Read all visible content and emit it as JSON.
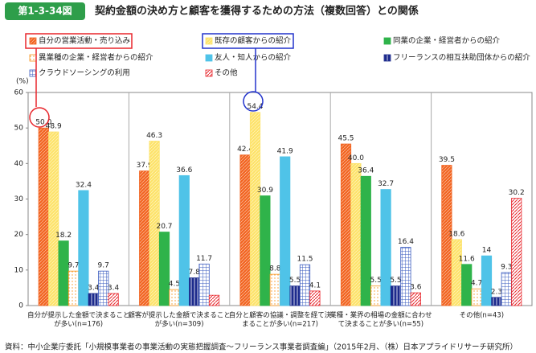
{
  "header": {
    "figure_number": "第1-3-34図"
  },
  "chart_data": {
    "type": "bar",
    "title": "契約金額の決め方と顧客を獲得するための方法（複数回答）との関係",
    "y_axis_label": "(%)",
    "categories": [
      [
        "自分が提示した金額で決まること",
        "が多い(n=176)"
      ],
      [
        "顧客が提示した金額で決まること",
        "が多い(n=309)"
      ],
      [
        "自分と顧客の協議・調整を経て決",
        "まることが多い(n=217)"
      ],
      [
        "業種・業界の相場の金額に合わせ",
        "て決まることが多い(n=55)"
      ],
      [
        "その他(n=43)"
      ]
    ],
    "series": [
      {
        "name": "自分の営業活動・売り込み",
        "color": "#f26522",
        "values": [
          50.0,
          37.9,
          42.4,
          45.5,
          39.5
        ],
        "value_labels": [
          "50.0",
          "37.9",
          "42.4",
          "45.5",
          "39.5"
        ]
      },
      {
        "name": "既存の顧客からの紹介",
        "color": "#fde36b",
        "values": [
          48.9,
          46.3,
          54.4,
          40.0,
          18.6
        ],
        "value_labels": [
          "48.9",
          "46.3",
          "54.4",
          "40.0",
          "18.6"
        ]
      },
      {
        "name": "同業の企業・経営者からの紹介",
        "color": "#2fb34a",
        "values": [
          18.2,
          20.7,
          30.9,
          36.4,
          11.6
        ],
        "value_labels": [
          "18.2",
          "20.7",
          "30.9",
          "36.4",
          "11.6"
        ]
      },
      {
        "name": "異業種の企業・経営者からの紹介",
        "color": "#f7941d",
        "values": [
          9.7,
          4.5,
          8.8,
          5.5,
          4.7
        ],
        "value_labels": [
          "9.7",
          "4.5",
          "8.8",
          "5.5",
          "4.7"
        ]
      },
      {
        "name": "友人・知人からの紹介",
        "color": "#4fc3e8",
        "values": [
          32.4,
          36.6,
          41.9,
          32.7,
          14
        ],
        "value_labels": [
          "32.4",
          "36.6",
          "41.9",
          "32.7",
          "14"
        ]
      },
      {
        "name": "フリーランスの相互扶助団体からの紹介",
        "color": "#1c2a8c",
        "values": [
          3.4,
          7.8,
          5.5,
          5.5,
          2.3
        ],
        "value_labels": [
          "3.4",
          "7.8",
          "5.5",
          "5.5",
          "2.3"
        ]
      },
      {
        "name": "クラウドソーシングの利用",
        "color": "#3a5bbf",
        "values": [
          9.7,
          11.7,
          11.5,
          16.4,
          9.3
        ],
        "value_labels": [
          "9.7",
          "11.7",
          "11.5",
          "16.4",
          "9.3"
        ]
      },
      {
        "name": "その他",
        "color": "#e8262c",
        "values": [
          3.4,
          2.9,
          4.1,
          3.6,
          30.2
        ],
        "value_labels": [
          "3.4",
          null,
          "4.1",
          "3.6",
          "30.2"
        ]
      }
    ],
    "ylim": [
      0,
      60
    ],
    "yticks": [
      0,
      10,
      20,
      30,
      40,
      50,
      60
    ],
    "grid": false,
    "source": "資料：中小企業庁委託「小規模事業者の事業活動の実態把握調査～フリーランス事業者調査編」（2015年2月、（株）日本アプライドリサーチ研究所）"
  }
}
